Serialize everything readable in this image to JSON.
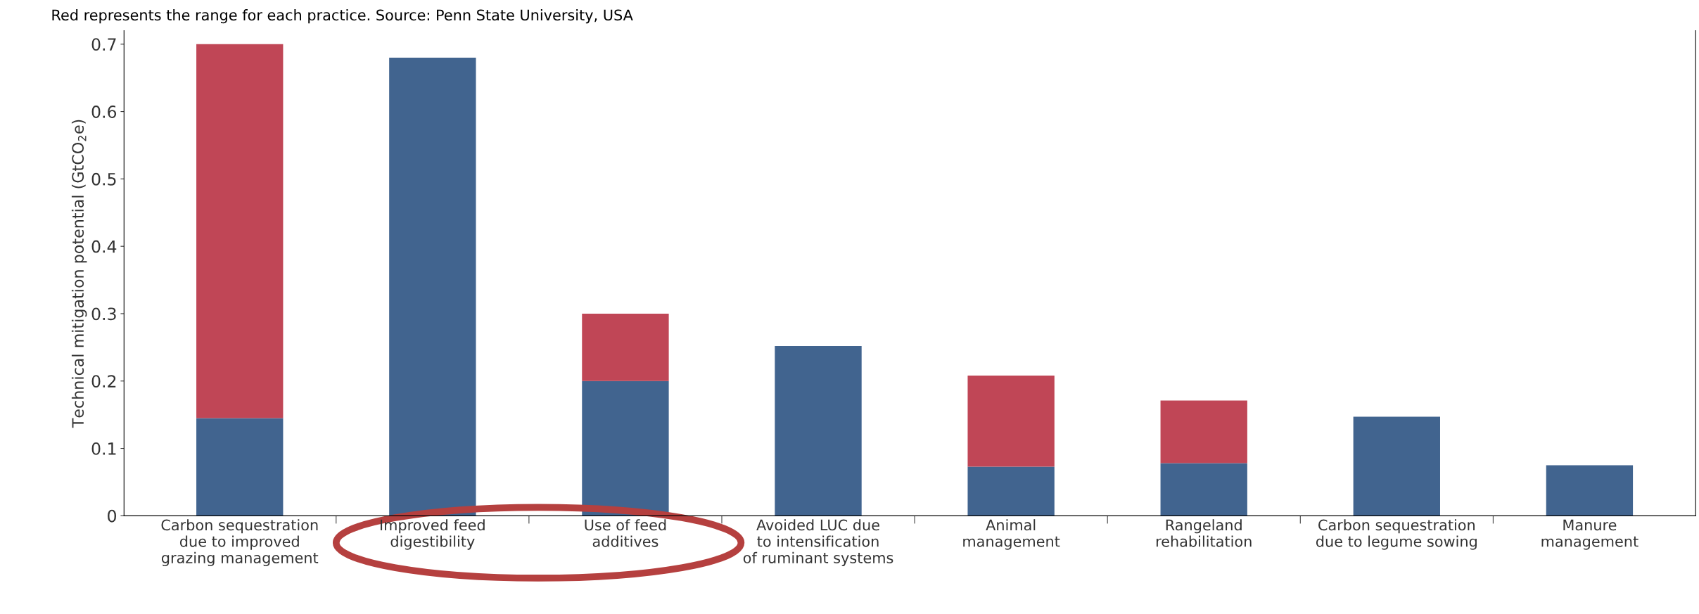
{
  "chart_data": {
    "type": "bar",
    "stacked": true,
    "annotations": [
      "Red represents the range for each practice. Source: Penn State University, USA"
    ],
    "ylabel": "Technical mitigation potential (GtCO$_{2}$e)",
    "categories": [
      "Carbon sequestration\ndue to improved\ngrazing management",
      "Improved feed\ndigestibility",
      "Use of feed\nadditives",
      "Avoided LUC due\nto intensification\nof ruminant systems",
      "Animal\nmanagement",
      "Rangeland\nrehabilitation",
      "Carbon sequestration\ndue to legume sowing",
      "Manure\nmanagement"
    ],
    "series": [
      {
        "color": "#41648f",
        "values": [
          0.145,
          0.68,
          0.2,
          0.252,
          0.073,
          0.078,
          0.147,
          0.075
        ]
      },
      {
        "color": "#c04656",
        "values": [
          0.555,
          null,
          0.1,
          null,
          0.135,
          0.093,
          null,
          null
        ]
      }
    ],
    "ylim": [
      0,
      0.72
    ],
    "yticks": [
      {
        "value": 0,
        "label": "0"
      },
      0.1,
      0.2,
      0.3,
      0.4,
      0.5,
      0.6,
      0.7
    ],
    "grid": false,
    "legend": false
  }
}
